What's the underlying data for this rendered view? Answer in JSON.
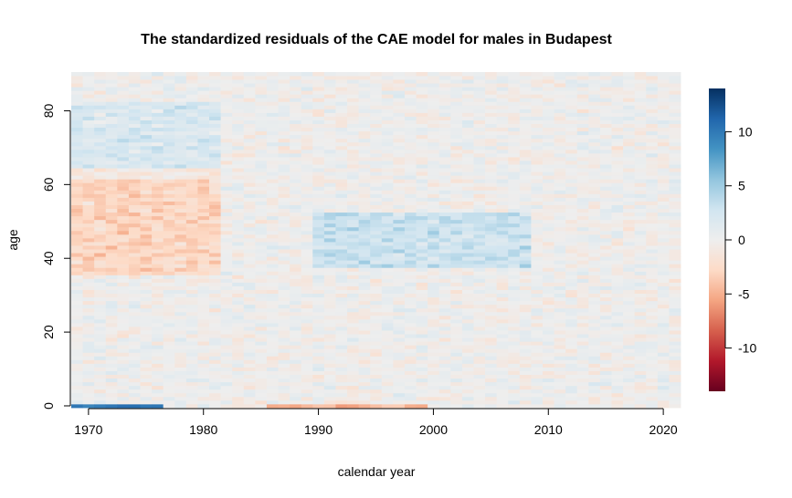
{
  "chart_data": {
    "type": "heatmap",
    "title": "The standardized residuals of the CAE model for males in Budapest",
    "xlabel": "calendar year",
    "ylabel": "age",
    "x_range": [
      1969,
      2021
    ],
    "y_range": [
      0,
      90
    ],
    "x_ticks": [
      "1970",
      "1980",
      "1990",
      "2000",
      "2010",
      "2020"
    ],
    "y_ticks": [
      "0",
      "20",
      "40",
      "60",
      "80"
    ],
    "colorbar": {
      "range": [
        -14,
        14
      ],
      "ticks": [
        "10",
        "5",
        "0",
        "-5",
        "-10"
      ],
      "colors": [
        "#67001f",
        "#b2182b",
        "#d6604d",
        "#f4a582",
        "#fddbc7",
        "#eeeeee",
        "#d1e5f0",
        "#92c5de",
        "#4393c3",
        "#2166ac",
        "#053061"
      ]
    },
    "patterns": [
      {
        "region": "ages 36-64, years 1969-1981",
        "residual": -3
      },
      {
        "region": "ages 38-52, years 1990-2008",
        "residual": 3
      },
      {
        "region": "ages 62-82, years 1969-1981",
        "residual": 2
      },
      {
        "region": "age 0, years 1969-1976",
        "residual": 10
      },
      {
        "region": "age 0, years 1986-1999",
        "residual": -4.5
      }
    ]
  }
}
